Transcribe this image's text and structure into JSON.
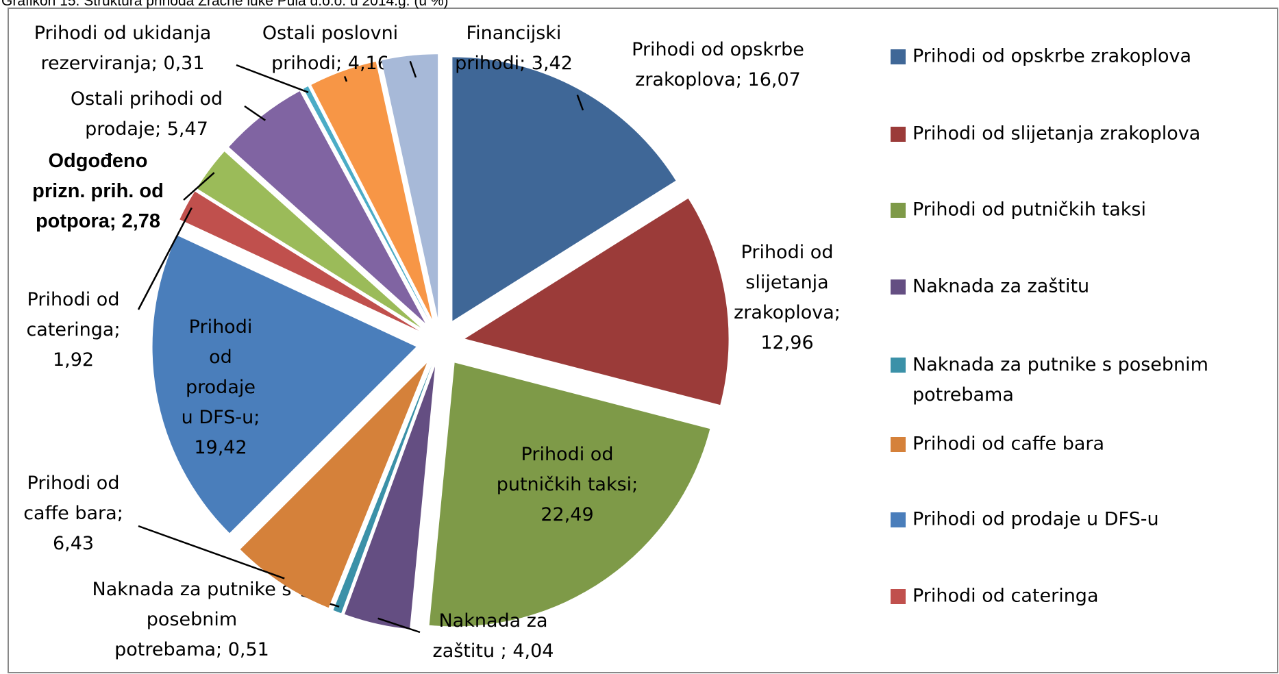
{
  "chart_data": {
    "type": "pie",
    "title": "Grafikon 15. Struktura prihoda Zračne luke Pula d.o.o. u 2014.g. (u %)",
    "values": [
      16.07,
      12.96,
      22.49,
      4.04,
      0.51,
      6.43,
      19.42,
      1.92,
      2.78,
      5.47,
      0.31,
      4.16,
      3.42
    ],
    "value_labels": [
      "Prihodi od opskrbe\nzrakoplova; 16,07",
      "Prihodi od\nslijetanja\nzrakoplova;\n12,96",
      "Prihodi od\nputničkih taksi;\n22,49",
      "Naknada za\nzaštitu ; 4,04",
      "Naknada za putnike s\nposebnim\npotrebama; 0,51",
      "Prihodi od\ncaffe bara;\n6,43",
      "Prihodi\nod\nprodaje\nu DFS-u;\n19,42",
      "Prihodi od\ncateringa;\n1,92",
      "Odgođeno\nprizn. prih. od\npotpora; 2,78",
      "Ostali prihodi od\nprodaje; 5,47",
      "Prihodi od ukidanja\nrezerviranja; 0,31",
      "Ostali poslovni\nprihodi; 4,16",
      "Financijski\nprihodi; 3,42"
    ],
    "colors": [
      "#3f6797",
      "#9b3b39",
      "#7e9a48",
      "#644e82",
      "#3b91a8",
      "#d5813a",
      "#4a7ebb",
      "#c0504d",
      "#9bbb59",
      "#8064a2",
      "#4bacc6",
      "#f79646",
      "#a7b9d8"
    ],
    "legend": [
      "Prihodi od opskrbe zrakoplova",
      "Prihodi od slijetanja zrakoplova",
      "Prihodi od putničkih taksi",
      "Naknada za zaštitu",
      "Naknada za putnike s posebnim\npotrebama",
      "Prihodi od caffe bara",
      "Prihodi od prodaje u DFS-u",
      "Prihodi od cateringa"
    ]
  }
}
